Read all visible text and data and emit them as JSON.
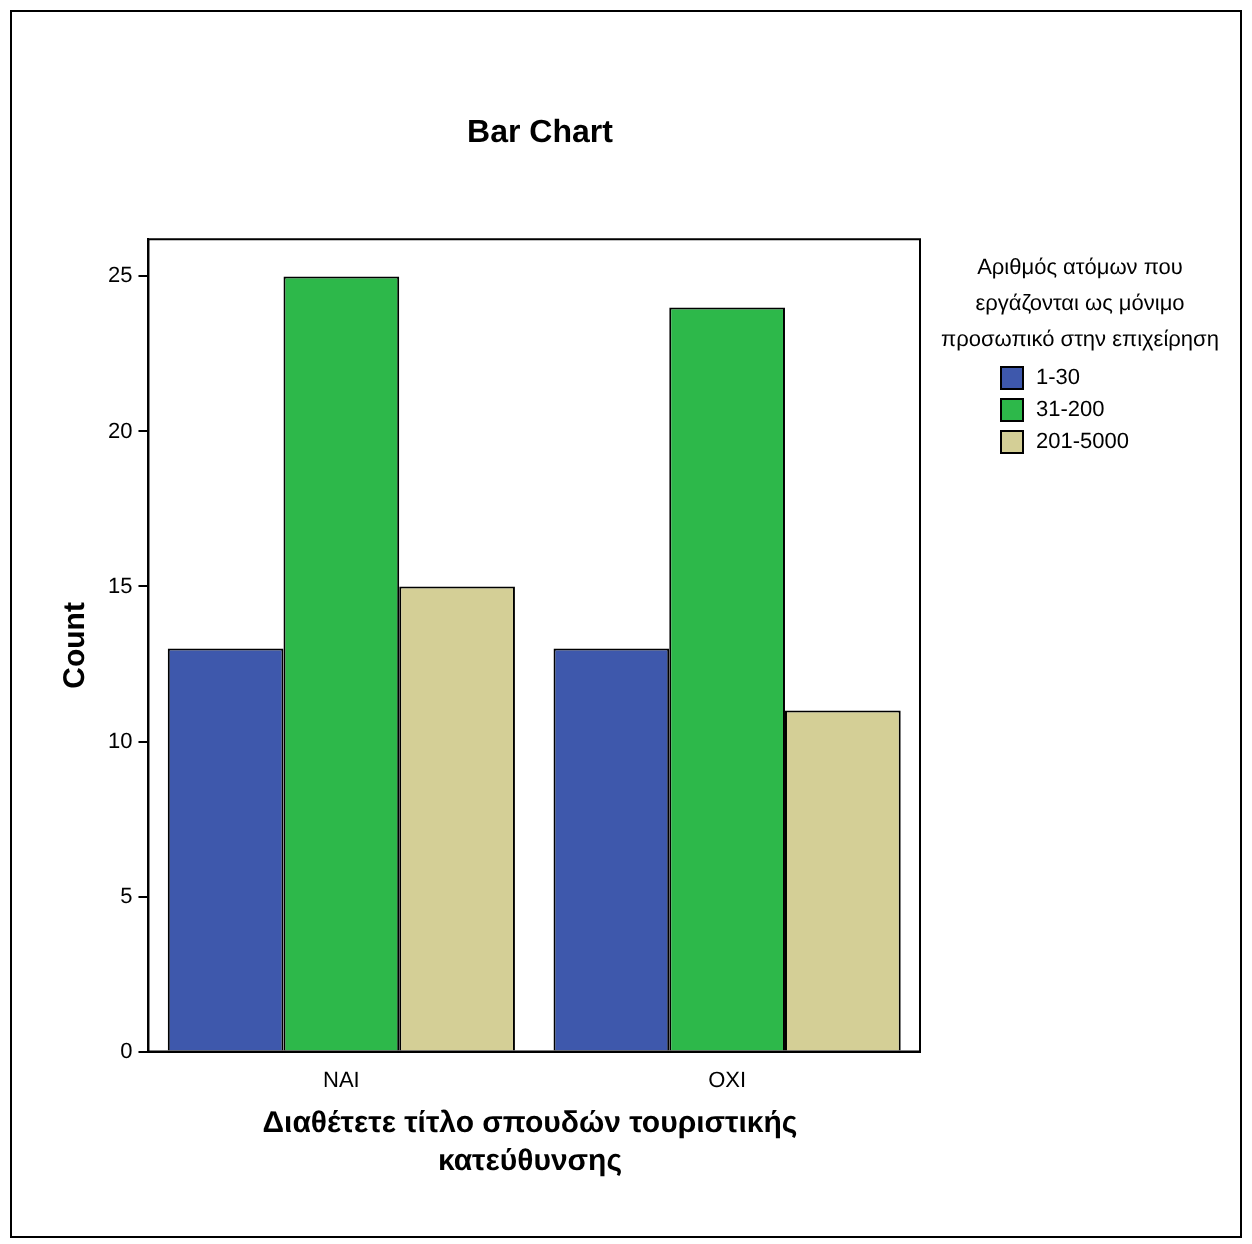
{
  "chart_data": {
    "type": "bar",
    "title": "Bar Chart",
    "xlabel": "Διαθέτετε τίτλο σπουδών τουριστικής κατεύθυνσης",
    "ylabel": "Count",
    "legend_title": "Αριθμός ατόμων που εργάζονται ως μόνιμο προσωπικό στην επιχείρηση",
    "categories": [
      "ΝΑΙ",
      "ΟΧΙ"
    ],
    "series": [
      {
        "name": "1-30",
        "color": "#3e58ac",
        "values": [
          13,
          13
        ]
      },
      {
        "name": "31-200",
        "color": "#2db84a",
        "values": [
          25,
          24
        ]
      },
      {
        "name": "201-5000",
        "color": "#d4cf96",
        "values": [
          15,
          11
        ]
      }
    ],
    "ylim": [
      0,
      26.2
    ],
    "yticks": [
      0,
      5,
      10,
      15,
      20,
      25
    ],
    "grid": false,
    "legend": "right"
  }
}
